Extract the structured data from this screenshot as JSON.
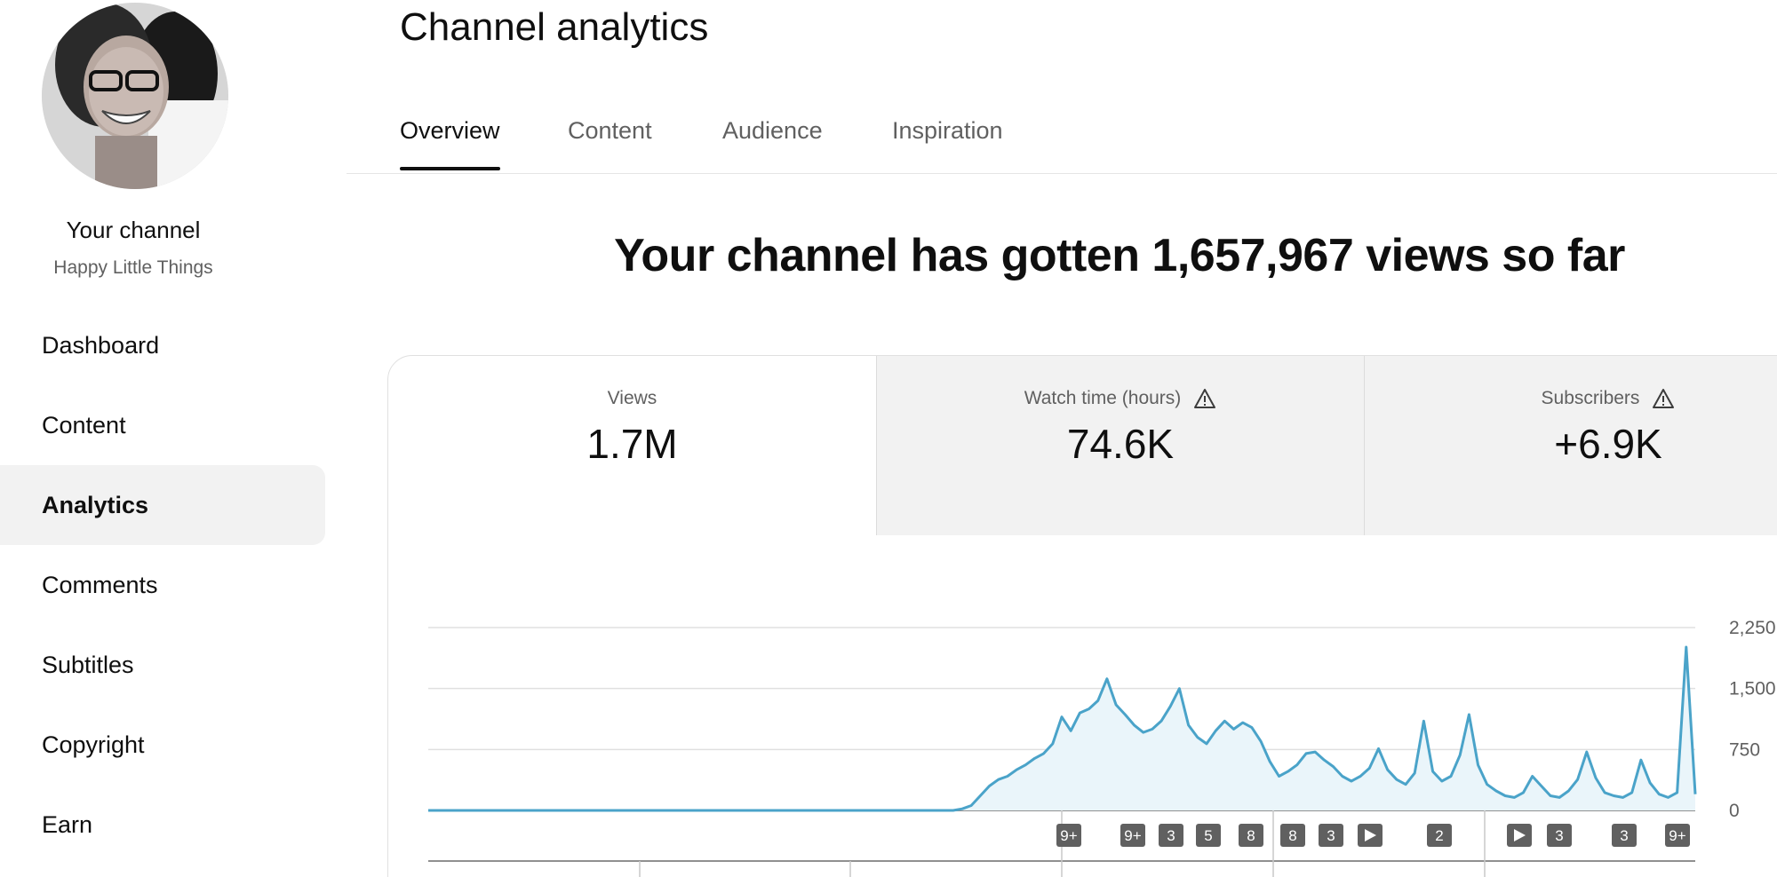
{
  "sidebar": {
    "channel_title": "Your channel",
    "channel_name": "Happy Little Things",
    "items": [
      {
        "label": "Dashboard",
        "active": false
      },
      {
        "label": "Content",
        "active": false
      },
      {
        "label": "Analytics",
        "active": true
      },
      {
        "label": "Comments",
        "active": false
      },
      {
        "label": "Subtitles",
        "active": false
      },
      {
        "label": "Copyright",
        "active": false
      },
      {
        "label": "Earn",
        "active": false
      }
    ]
  },
  "header": {
    "title": "Channel analytics"
  },
  "tabs": [
    {
      "label": "Overview",
      "active": true
    },
    {
      "label": "Content",
      "active": false
    },
    {
      "label": "Audience",
      "active": false
    },
    {
      "label": "Inspiration",
      "active": false
    }
  ],
  "headline": "Your channel has gotten 1,657,967 views so far",
  "metrics": [
    {
      "label": "Views",
      "value": "1.7M",
      "warning": false
    },
    {
      "label": "Watch time (hours)",
      "value": "74.6K",
      "warning": true
    },
    {
      "label": "Subscribers",
      "value": "+6.9K",
      "warning": true
    }
  ],
  "colors": {
    "accent": "#4aa3c9",
    "fill": "#eaf5fa",
    "marker": "#606060"
  },
  "chart_data": {
    "type": "area",
    "title": "",
    "xlabel": "",
    "ylabel": "",
    "ylim": [
      0,
      2250
    ],
    "yticks": [
      "2,250",
      "1,500",
      "750",
      "0"
    ],
    "grid": true,
    "series": [
      {
        "values": [
          0,
          0,
          0,
          0,
          0,
          0,
          0,
          0,
          0,
          0,
          0,
          0,
          0,
          0,
          0,
          0,
          0,
          0,
          0,
          0,
          0,
          0,
          0,
          0,
          0,
          0,
          0,
          0,
          0,
          0,
          0,
          0,
          0,
          0,
          0,
          0,
          0,
          0,
          0,
          0,
          0,
          0,
          0,
          0,
          0,
          0,
          0,
          0,
          0,
          0,
          0,
          0,
          0,
          0,
          0,
          0,
          0,
          0,
          0,
          20,
          60,
          180,
          300,
          380,
          420,
          500,
          560,
          640,
          700,
          820,
          1150,
          980,
          1200,
          1250,
          1350,
          1620,
          1300,
          1180,
          1050,
          960,
          1000,
          1100,
          1280,
          1500,
          1050,
          900,
          820,
          980,
          1100,
          1000,
          1080,
          1020,
          850,
          600,
          420,
          480,
          560,
          700,
          720,
          620,
          540,
          420,
          360,
          420,
          520,
          760,
          500,
          380,
          320,
          460,
          1100,
          480,
          360,
          420,
          680,
          1180,
          560,
          320,
          240,
          180,
          160,
          220,
          420,
          300,
          180,
          160,
          240,
          380,
          720,
          400,
          220,
          180,
          160,
          220,
          620,
          340,
          200,
          160,
          220,
          2010,
          200
        ]
      }
    ],
    "markers": [
      "9+",
      "9+",
      "3",
      "5",
      "8",
      "8",
      "3",
      "play",
      "2",
      "play",
      "3",
      "3",
      "9+"
    ]
  }
}
